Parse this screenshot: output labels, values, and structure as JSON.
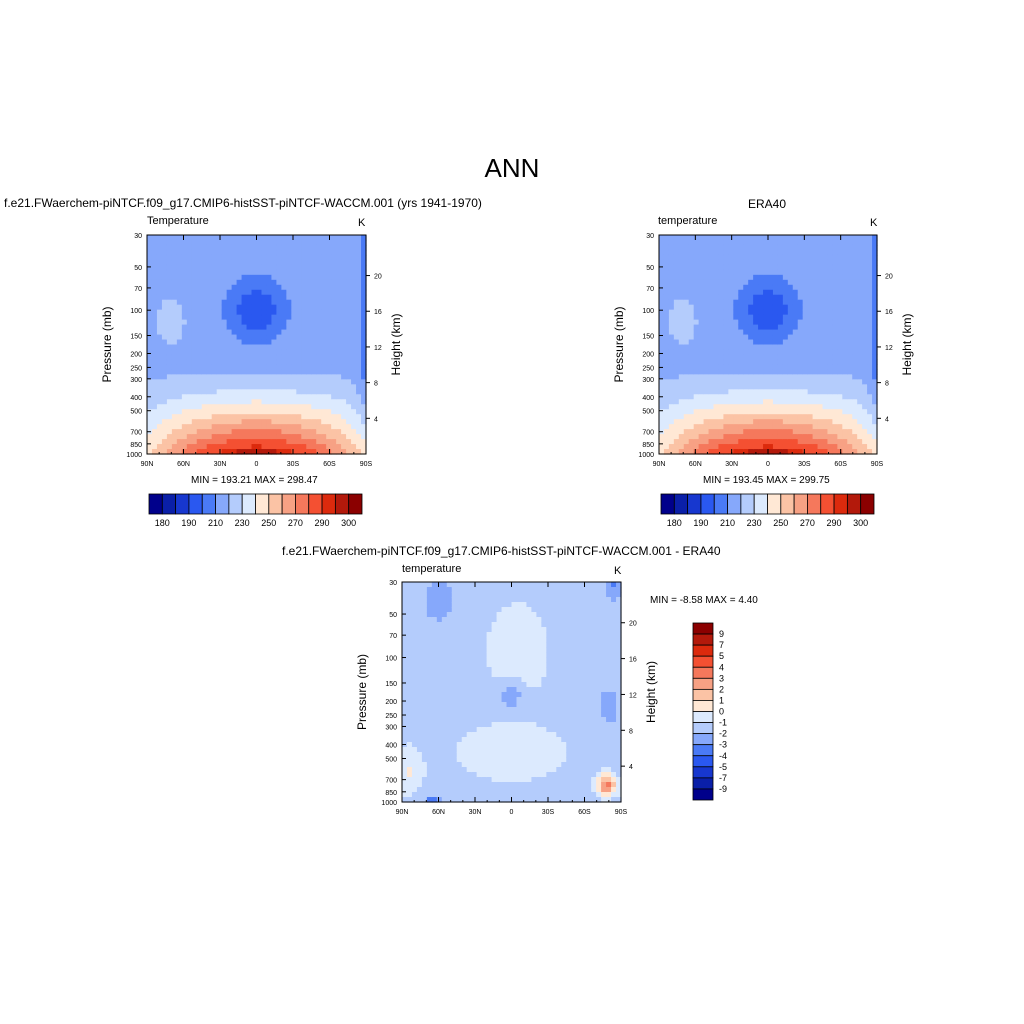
{
  "main_title": "ANN",
  "colors": {
    "abs_palette": [
      "#00008b",
      "#0a1fa8",
      "#1737cf",
      "#2a58f0",
      "#4a7af6",
      "#86a8fb",
      "#b4ccfc",
      "#dceafe",
      "#ffe8d5",
      "#fbc3a5",
      "#f7a184",
      "#f5785c",
      "#f45032",
      "#dc2a0d",
      "#b3190b",
      "#8b0000"
    ],
    "diff_palette": [
      "#00008b",
      "#0a1fa8",
      "#1737cf",
      "#2a58f0",
      "#4a7af6",
      "#86a8fb",
      "#b4ccfc",
      "#dceafe",
      "#ffe8d5",
      "#fbc3a5",
      "#f7a184",
      "#f5785c",
      "#f45032",
      "#dc2a0d",
      "#b3190b",
      "#8b0000"
    ]
  },
  "panels": {
    "model": {
      "title": "f.e21.FWaerchem-piNTCF.f09_g17.CMIP6-histSST-piNTCF-WACCM.001 (yrs 1941-1970)",
      "var_label": "Temperature",
      "unit": "K",
      "minmax": "MIN = 193.21  MAX = 298.47",
      "colorbar_labels": [
        "180",
        "190",
        "210",
        "230",
        "250",
        "270",
        "290",
        "300"
      ]
    },
    "obs": {
      "title": "ERA40",
      "var_label": "temperature",
      "unit": "K",
      "minmax": "MIN = 193.45  MAX = 299.75",
      "colorbar_labels": [
        "180",
        "190",
        "210",
        "230",
        "250",
        "270",
        "290",
        "300"
      ]
    },
    "diff": {
      "title": "f.e21.FWaerchem-piNTCF.f09_g17.CMIP6-histSST-piNTCF-WACCM.001 - ERA40",
      "var_label": "temperature",
      "unit": "K",
      "minmax": "MIN =  -8.58  MAX =   4.40",
      "colorbar_labels": [
        "9",
        "7",
        "5",
        "4",
        "3",
        "2",
        "1",
        "0",
        "-1",
        "-2",
        "-3",
        "-4",
        "-5",
        "-7",
        "-9"
      ]
    }
  },
  "chart_data": [
    {
      "type": "heatmap",
      "title": "f.e21.FWaerchem-piNTCF.f09_g17.CMIP6-histSST-piNTCF-WACCM.001 (yrs 1941-1970)",
      "subtitle": "Temperature",
      "units": "K",
      "xlabel": "",
      "ylabel": "Pressure (mb)",
      "y2label": "Height (km)",
      "x_ticks": [
        "90N",
        "60N",
        "30N",
        "0",
        "30S",
        "60S",
        "90S"
      ],
      "y_ticks": [
        30,
        50,
        70,
        100,
        150,
        200,
        250,
        300,
        400,
        500,
        700,
        850,
        1000
      ],
      "y2_ticks": [
        4,
        8,
        12,
        16,
        20
      ],
      "ylim": [
        1000,
        30
      ],
      "y_scale": "log",
      "min": 193.21,
      "max": 298.47,
      "levels": [
        180,
        185,
        190,
        200,
        210,
        220,
        230,
        240,
        250,
        260,
        270,
        280,
        290,
        295,
        300
      ]
    },
    {
      "type": "heatmap",
      "title": "ERA40",
      "subtitle": "temperature",
      "units": "K",
      "xlabel": "",
      "ylabel": "Pressure (mb)",
      "y2label": "Height (km)",
      "x_ticks": [
        "90N",
        "60N",
        "30N",
        "0",
        "30S",
        "60S",
        "90S"
      ],
      "y_ticks": [
        30,
        50,
        70,
        100,
        150,
        200,
        250,
        300,
        400,
        500,
        700,
        850,
        1000
      ],
      "y2_ticks": [
        4,
        8,
        12,
        16,
        20
      ],
      "ylim": [
        1000,
        30
      ],
      "y_scale": "log",
      "min": 193.45,
      "max": 299.75,
      "levels": [
        180,
        185,
        190,
        200,
        210,
        220,
        230,
        240,
        250,
        260,
        270,
        280,
        290,
        295,
        300
      ]
    },
    {
      "type": "heatmap",
      "title": "f.e21.FWaerchem-piNTCF.f09_g17.CMIP6-histSST-piNTCF-WACCM.001 - ERA40",
      "subtitle": "temperature",
      "units": "K",
      "xlabel": "",
      "ylabel": "Pressure (mb)",
      "y2label": "Height (km)",
      "x_ticks": [
        "90N",
        "60N",
        "30N",
        "0",
        "30S",
        "60S",
        "90S"
      ],
      "y_ticks": [
        30,
        50,
        70,
        100,
        150,
        200,
        250,
        300,
        400,
        500,
        700,
        850,
        1000
      ],
      "y2_ticks": [
        4,
        8,
        12,
        16,
        20
      ],
      "ylim": [
        1000,
        30
      ],
      "y_scale": "log",
      "min": -8.58,
      "max": 4.4,
      "levels": [
        -9,
        -7,
        -5,
        -4,
        -3,
        -2,
        -1,
        0,
        1,
        2,
        3,
        4,
        5,
        7,
        9
      ]
    }
  ]
}
